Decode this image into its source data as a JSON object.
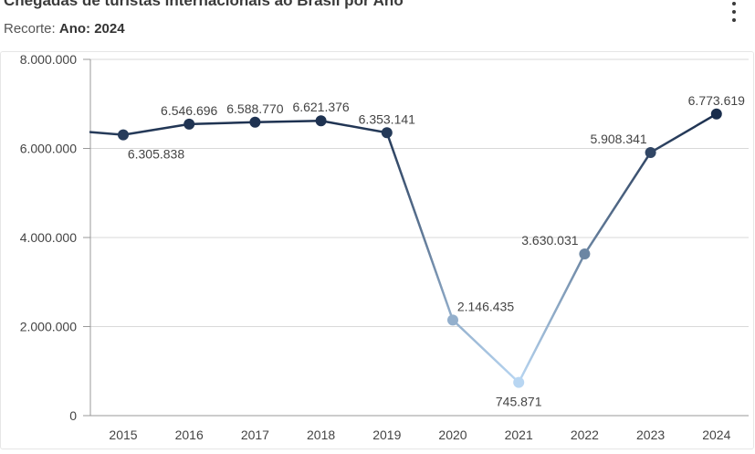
{
  "header": {
    "title": "Chegadas de turistas internacionais ao Brasil por Ano",
    "subtitle_label": "Recorte:",
    "subtitle_value": "Ano: 2024",
    "menu_icon": "vertical-ellipsis-icon"
  },
  "chart_data": {
    "type": "line",
    "categories": [
      "2015",
      "2016",
      "2017",
      "2018",
      "2019",
      "2020",
      "2021",
      "2022",
      "2023",
      "2024"
    ],
    "values": [
      6305838,
      6546696,
      6588770,
      6621376,
      6353141,
      2146435,
      745871,
      3630031,
      5908341,
      6773619
    ],
    "data_labels": [
      "6.305.838",
      "6.546.696",
      "6.588.770",
      "6.621.376",
      "6.353.141",
      "2.146.435",
      "745.871",
      "3.630.031",
      "5.908.341",
      "6.773.619"
    ],
    "ylim": [
      0,
      8000000
    ],
    "yticks": [
      0,
      2000000,
      4000000,
      6000000,
      8000000
    ],
    "ytick_labels": [
      "0",
      "2.000.000",
      "4.000.000",
      "6.000.000",
      "8.000.000"
    ],
    "grid": true,
    "colors": {
      "line_high": "#1a2e4d",
      "line_low": "#b8d6f2",
      "grid": "#d9d9d9",
      "label": "#444444"
    }
  }
}
